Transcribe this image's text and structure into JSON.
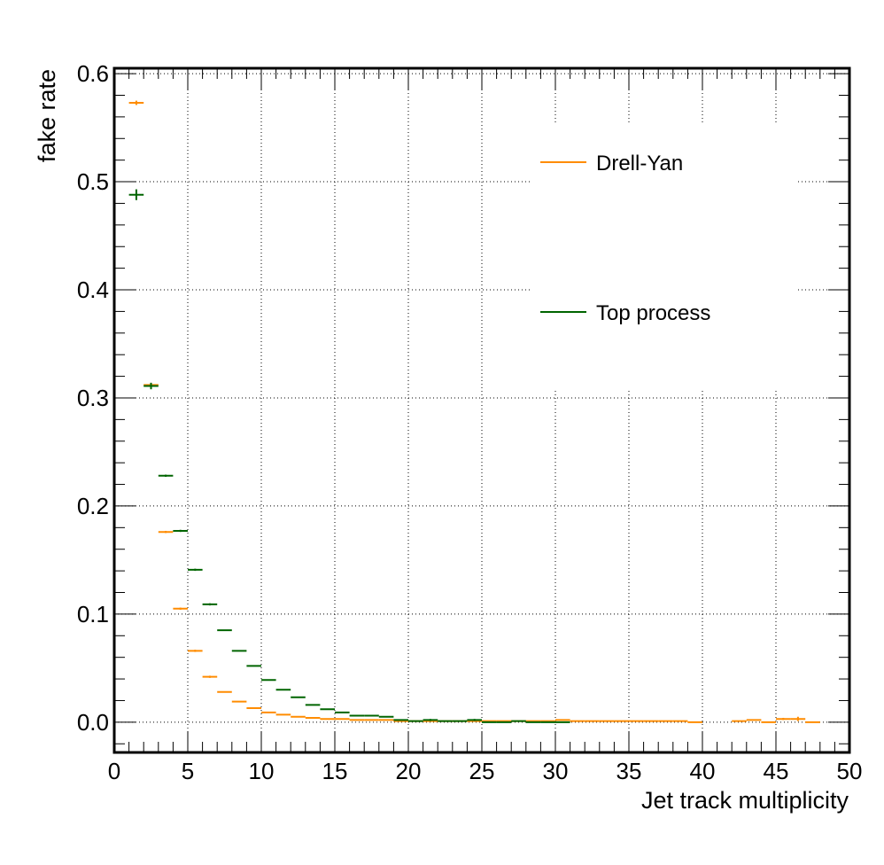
{
  "chart_data": {
    "type": "scatter",
    "title": "",
    "xlabel": "Jet track multiplicity",
    "ylabel": "fake rate",
    "xlim": [
      0,
      50
    ],
    "ylim": [
      -0.028,
      0.605
    ],
    "grid": true,
    "legend_placement": "top-right",
    "xticks": [
      "0",
      "5",
      "10",
      "15",
      "20",
      "25",
      "30",
      "35",
      "40",
      "45",
      "50"
    ],
    "yticks": [
      "0.0",
      "0.1",
      "0.2",
      "0.3",
      "0.4",
      "0.5",
      "0.6"
    ],
    "series": [
      {
        "name": "Drell-Yan",
        "color": "#ff8c00",
        "x": [
          1,
          2,
          3,
          4,
          5,
          6,
          7,
          8,
          9,
          10,
          11,
          12,
          13,
          14,
          15,
          16,
          17,
          18,
          19,
          20,
          21,
          22,
          23,
          24,
          25,
          26,
          27,
          28,
          29,
          30,
          31,
          32,
          33,
          34,
          35,
          36,
          37,
          38,
          39,
          42,
          43,
          44,
          45,
          46,
          47
        ],
        "y": [
          0.573,
          0.312,
          0.176,
          0.105,
          0.066,
          0.042,
          0.028,
          0.019,
          0.013,
          0.009,
          0.007,
          0.005,
          0.004,
          0.003,
          0.003,
          0.002,
          0.002,
          0.002,
          0.001,
          0.001,
          0.001,
          0.001,
          0.001,
          0.001,
          0.001,
          0.001,
          0.001,
          0.001,
          0.001,
          0.002,
          0.001,
          0.001,
          0.001,
          0.001,
          0.001,
          0.001,
          0.001,
          0.001,
          0.0,
          0.001,
          0.002,
          0.0,
          0.003,
          0.003,
          0.0
        ],
        "yerr": [
          0.002,
          0.002,
          0.001,
          0.001,
          0.001,
          0.001,
          0.0,
          0.0,
          0.0,
          0.0,
          0.0,
          0.0,
          0.0,
          0.0,
          0.0,
          0.0,
          0.0,
          0.0,
          0.0,
          0.0,
          0.0,
          0.0,
          0.0,
          0.0,
          0.0,
          0.0,
          0.0,
          0.0,
          0.0,
          0.0,
          0.0,
          0.0,
          0.0,
          0.0,
          0.0,
          0.0,
          0.0,
          0.0,
          0.0,
          0.0,
          0.0,
          0.0,
          0.001,
          0.002,
          0.0
        ]
      },
      {
        "name": "Top process",
        "color": "#006400",
        "x": [
          1,
          2,
          3,
          4,
          5,
          6,
          7,
          8,
          9,
          10,
          11,
          12,
          13,
          14,
          15,
          16,
          17,
          18,
          19,
          20,
          21,
          22,
          23,
          24,
          25,
          26,
          27,
          28,
          29,
          30
        ],
        "y": [
          0.488,
          0.311,
          0.228,
          0.177,
          0.141,
          0.109,
          0.085,
          0.066,
          0.052,
          0.039,
          0.03,
          0.023,
          0.016,
          0.012,
          0.009,
          0.006,
          0.006,
          0.005,
          0.002,
          0.001,
          0.002,
          0.001,
          0.001,
          0.002,
          0.0,
          0.0,
          0.001,
          0.0,
          0.0,
          0.0
        ],
        "yerr": [
          0.005,
          0.003,
          0.001,
          0.001,
          0.001,
          0.001,
          0.0,
          0.0,
          0.0,
          0.0,
          0.0,
          0.0,
          0.0,
          0.0,
          0.0,
          0.0,
          0.0,
          0.0,
          0.0,
          0.0,
          0.001,
          0.0,
          0.0,
          0.001,
          0.0,
          0.0,
          0.0,
          0.0,
          0.0,
          0.0
        ]
      }
    ]
  }
}
